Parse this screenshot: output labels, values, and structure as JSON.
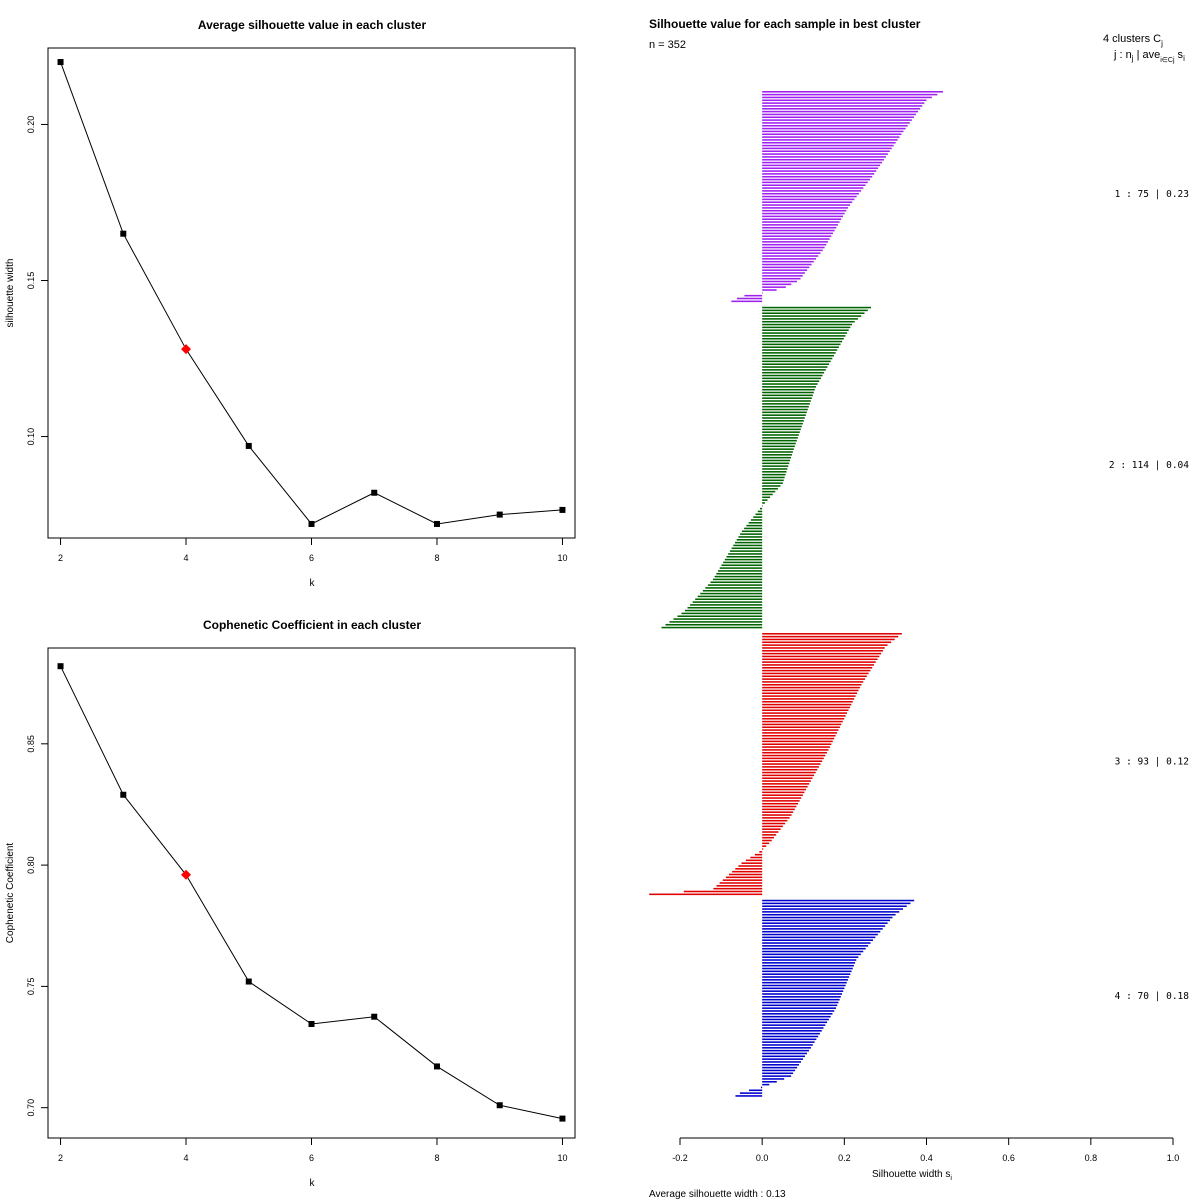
{
  "chart_data": [
    {
      "type": "line",
      "title": "Average silhouette value in each cluster",
      "xlabel": "k",
      "ylabel": "silhouette width",
      "x": [
        2,
        3,
        4,
        5,
        6,
        7,
        8,
        9,
        10
      ],
      "values": [
        0.22,
        0.165,
        0.128,
        0.097,
        0.072,
        0.082,
        0.072,
        0.075,
        0.0765
      ],
      "highlight_index": 2,
      "highlight_color": "#ff0000",
      "xticks": [
        "2",
        "4",
        "6",
        "8",
        "10"
      ],
      "yticks": [
        "0.10",
        "0.15",
        "0.20"
      ],
      "ytick_values": [
        0.1,
        0.15,
        0.2
      ],
      "xlim": [
        1.8,
        10.2
      ],
      "ylim": [
        0.0675,
        0.2245
      ]
    },
    {
      "type": "line",
      "title": "Cophenetic Coefficient in each cluster",
      "xlabel": "k",
      "ylabel": "Cophenetic Coefficient",
      "x": [
        2,
        3,
        4,
        5,
        6,
        7,
        8,
        9,
        10
      ],
      "values": [
        0.882,
        0.829,
        0.796,
        0.752,
        0.7345,
        0.7375,
        0.717,
        0.701,
        0.6955
      ],
      "highlight_index": 2,
      "highlight_color": "#ff0000",
      "xticks": [
        "2",
        "4",
        "6",
        "8",
        "10"
      ],
      "yticks": [
        "0.70",
        "0.75",
        "0.80",
        "0.85"
      ],
      "ytick_values": [
        0.7,
        0.75,
        0.8,
        0.85
      ],
      "xlim": [
        1.8,
        10.2
      ],
      "ylim": [
        0.6875,
        0.8895
      ]
    },
    {
      "type": "bar",
      "orientation": "horizontal",
      "title": "Silhouette value for each sample in best cluster",
      "n_label": "n = 352",
      "legend_header": "4  clusters  C",
      "legend_header_sub": "j",
      "legend_row2": "j :  n",
      "legend_row2_sub": "j",
      "legend_row2_tail": " | ave",
      "legend_row2_sub2": "i∈Cj",
      "legend_row2_tail2": " s",
      "legend_row2_sub3": "i",
      "xlabel": "Silhouette width s",
      "xlabel_sub": "i",
      "average_text": "Average silhouette width :  0.13",
      "xticks": [
        "-0.2",
        "0.0",
        "0.2",
        "0.4",
        "0.6",
        "0.8",
        "1.0"
      ],
      "xtick_values": [
        -0.2,
        0.0,
        0.2,
        0.4,
        0.6,
        0.8,
        1.0
      ],
      "xlim": [
        -0.2,
        1.0
      ],
      "clusters": [
        {
          "label": "1 :  75  |  0.23",
          "n": 75,
          "avg": 0.23,
          "color": "#a020f0",
          "profile": [
            [
              0,
              0.44
            ],
            [
              0.04,
              0.4
            ],
            [
              0.2,
              0.34
            ],
            [
              0.4,
              0.27
            ],
            [
              0.55,
              0.21
            ],
            [
              0.75,
              0.15
            ],
            [
              0.9,
              0.09
            ],
            [
              0.94,
              0.05
            ],
            [
              0.96,
              0.0
            ],
            [
              0.975,
              -0.05
            ],
            [
              1.0,
              -0.075
            ]
          ]
        },
        {
          "label": "2 :  114  |  0.04",
          "n": 114,
          "avg": 0.04,
          "color": "#006400",
          "profile": [
            [
              0,
              0.265
            ],
            [
              0.05,
              0.22
            ],
            [
              0.25,
              0.13
            ],
            [
              0.45,
              0.075
            ],
            [
              0.55,
              0.05
            ],
            [
              0.62,
              0.0
            ],
            [
              0.7,
              -0.05
            ],
            [
              0.85,
              -0.12
            ],
            [
              0.95,
              -0.19
            ],
            [
              1.0,
              -0.245
            ]
          ]
        },
        {
          "label": "3 :  93  |  0.12",
          "n": 93,
          "avg": 0.12,
          "color": "#e00000",
          "profile": [
            [
              0,
              0.34
            ],
            [
              0.05,
              0.3
            ],
            [
              0.2,
              0.24
            ],
            [
              0.45,
              0.16
            ],
            [
              0.7,
              0.07
            ],
            [
              0.8,
              0.02
            ],
            [
              0.83,
              0.0
            ],
            [
              0.88,
              -0.05
            ],
            [
              0.98,
              -0.12
            ],
            [
              1.0,
              -0.275
            ]
          ]
        },
        {
          "label": "4 :  70  |  0.18",
          "n": 70,
          "avg": 0.18,
          "color": "#0000cd",
          "profile": [
            [
              0,
              0.37
            ],
            [
              0.08,
              0.32
            ],
            [
              0.3,
              0.23
            ],
            [
              0.55,
              0.18
            ],
            [
              0.75,
              0.12
            ],
            [
              0.9,
              0.07
            ],
            [
              0.94,
              0.02
            ],
            [
              0.955,
              0.0
            ],
            [
              0.98,
              -0.05
            ],
            [
              1.0,
              -0.065
            ]
          ]
        }
      ]
    }
  ]
}
